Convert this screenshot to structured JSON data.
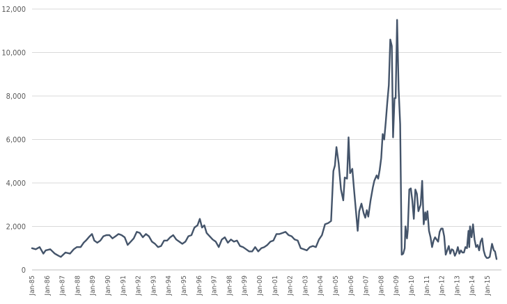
{
  "colors": {
    "line": "#44546a",
    "grid": "#d9d9d9",
    "text": "#595959"
  },
  "chart_data": {
    "type": "line",
    "title": "",
    "xlabel": "",
    "ylabel": "",
    "ylim": [
      0,
      12000
    ],
    "grid": "horizontal",
    "y_ticks": [
      0,
      2000,
      4000,
      6000,
      8000,
      10000,
      12000
    ],
    "y_tick_labels": [
      "0",
      "2,000",
      "4,000",
      "6,000",
      "8,000",
      "10,000",
      "12,000"
    ],
    "x_range": [
      1985.0,
      2015.92
    ],
    "x_ticks": [
      1985,
      1986,
      1987,
      1988,
      1989,
      1990,
      1991,
      1992,
      1993,
      1994,
      1995,
      1996,
      1997,
      1998,
      1999,
      2000,
      2001,
      2002,
      2003,
      2004,
      2005,
      2006,
      2007,
      2008,
      2009,
      2010,
      2011,
      2012,
      2013,
      2014,
      2015
    ],
    "x_tick_labels": [
      "Jan-85",
      "Jan-86",
      "Jan-87",
      "Jan-88",
      "Jan-89",
      "Jan-90",
      "Jan-91",
      "Jan-92",
      "Jan-93",
      "Jan-94",
      "Jan-95",
      "Jan-96",
      "Jan-97",
      "Jan-98",
      "Jan-99",
      "Jan-00",
      "Jan-01",
      "Jan-02",
      "Jan-03",
      "Jan-04",
      "Jan-05",
      "Jan-06",
      "Jan-07",
      "Jan-08",
      "Jan-09",
      "Jan-10",
      "Jan-11",
      "Jan-12",
      "Jan-13",
      "Jan-14",
      "Jan-15"
    ],
    "series": [
      {
        "points": [
          [
            1985.0,
            1000
          ],
          [
            1985.25,
            950
          ],
          [
            1985.5,
            1050
          ],
          [
            1985.75,
            750
          ],
          [
            1985.9,
            900
          ],
          [
            1986.2,
            950
          ],
          [
            1986.5,
            750
          ],
          [
            1986.75,
            650
          ],
          [
            1986.9,
            600
          ],
          [
            1987.2,
            800
          ],
          [
            1987.5,
            750
          ],
          [
            1987.75,
            950
          ],
          [
            1987.95,
            1050
          ],
          [
            1988.2,
            1050
          ],
          [
            1988.4,
            1250
          ],
          [
            1988.55,
            1350
          ],
          [
            1988.8,
            1550
          ],
          [
            1988.95,
            1650
          ],
          [
            1989.1,
            1350
          ],
          [
            1989.3,
            1250
          ],
          [
            1989.5,
            1350
          ],
          [
            1989.7,
            1550
          ],
          [
            1989.9,
            1600
          ],
          [
            1990.1,
            1600
          ],
          [
            1990.3,
            1450
          ],
          [
            1990.5,
            1550
          ],
          [
            1990.7,
            1650
          ],
          [
            1990.9,
            1600
          ],
          [
            1991.1,
            1500
          ],
          [
            1991.3,
            1150
          ],
          [
            1991.5,
            1300
          ],
          [
            1991.7,
            1450
          ],
          [
            1991.9,
            1750
          ],
          [
            1992.1,
            1700
          ],
          [
            1992.3,
            1500
          ],
          [
            1992.5,
            1650
          ],
          [
            1992.7,
            1550
          ],
          [
            1992.9,
            1300
          ],
          [
            1993.1,
            1200
          ],
          [
            1993.3,
            1050
          ],
          [
            1993.5,
            1100
          ],
          [
            1993.7,
            1350
          ],
          [
            1993.9,
            1350
          ],
          [
            1994.1,
            1500
          ],
          [
            1994.3,
            1600
          ],
          [
            1994.5,
            1400
          ],
          [
            1994.7,
            1300
          ],
          [
            1994.9,
            1200
          ],
          [
            1995.1,
            1300
          ],
          [
            1995.3,
            1550
          ],
          [
            1995.5,
            1600
          ],
          [
            1995.7,
            1950
          ],
          [
            1995.9,
            2050
          ],
          [
            1996.05,
            2350
          ],
          [
            1996.2,
            1950
          ],
          [
            1996.35,
            2050
          ],
          [
            1996.5,
            1700
          ],
          [
            1996.7,
            1550
          ],
          [
            1996.9,
            1400
          ],
          [
            1997.1,
            1300
          ],
          [
            1997.3,
            1050
          ],
          [
            1997.5,
            1400
          ],
          [
            1997.7,
            1500
          ],
          [
            1997.9,
            1250
          ],
          [
            1998.1,
            1400
          ],
          [
            1998.3,
            1300
          ],
          [
            1998.5,
            1350
          ],
          [
            1998.7,
            1100
          ],
          [
            1998.9,
            1050
          ],
          [
            1999.1,
            950
          ],
          [
            1999.3,
            850
          ],
          [
            1999.5,
            850
          ],
          [
            1999.7,
            1050
          ],
          [
            1999.9,
            850
          ],
          [
            2000.1,
            1000
          ],
          [
            2000.3,
            1050
          ],
          [
            2000.5,
            1150
          ],
          [
            2000.7,
            1300
          ],
          [
            2000.9,
            1350
          ],
          [
            2001.1,
            1650
          ],
          [
            2001.3,
            1650
          ],
          [
            2001.5,
            1700
          ],
          [
            2001.7,
            1750
          ],
          [
            2001.9,
            1600
          ],
          [
            2002.1,
            1550
          ],
          [
            2002.3,
            1400
          ],
          [
            2002.5,
            1350
          ],
          [
            2002.7,
            1000
          ],
          [
            2002.9,
            950
          ],
          [
            2003.1,
            900
          ],
          [
            2003.3,
            1050
          ],
          [
            2003.5,
            1100
          ],
          [
            2003.7,
            1050
          ],
          [
            2003.9,
            1400
          ],
          [
            2004.1,
            1600
          ],
          [
            2004.3,
            2100
          ],
          [
            2004.5,
            2150
          ],
          [
            2004.7,
            2250
          ],
          [
            2004.85,
            4550
          ],
          [
            2004.95,
            4800
          ],
          [
            2005.05,
            5650
          ],
          [
            2005.2,
            4900
          ],
          [
            2005.35,
            3700
          ],
          [
            2005.5,
            3200
          ],
          [
            2005.6,
            4250
          ],
          [
            2005.75,
            4200
          ],
          [
            2005.85,
            6100
          ],
          [
            2005.95,
            4450
          ],
          [
            2006.1,
            4650
          ],
          [
            2006.2,
            3800
          ],
          [
            2006.3,
            3000
          ],
          [
            2006.45,
            1800
          ],
          [
            2006.55,
            2700
          ],
          [
            2006.7,
            3050
          ],
          [
            2006.85,
            2600
          ],
          [
            2006.95,
            2400
          ],
          [
            2007.05,
            2750
          ],
          [
            2007.15,
            2450
          ],
          [
            2007.3,
            3200
          ],
          [
            2007.45,
            3800
          ],
          [
            2007.55,
            4100
          ],
          [
            2007.7,
            4350
          ],
          [
            2007.8,
            4200
          ],
          [
            2007.9,
            4600
          ],
          [
            2008.0,
            5150
          ],
          [
            2008.1,
            6250
          ],
          [
            2008.2,
            6000
          ],
          [
            2008.3,
            6800
          ],
          [
            2008.4,
            7700
          ],
          [
            2008.5,
            8500
          ],
          [
            2008.6,
            10600
          ],
          [
            2008.7,
            10300
          ],
          [
            2008.78,
            6100
          ],
          [
            2008.88,
            7900
          ],
          [
            2008.95,
            7900
          ],
          [
            2009.05,
            11500
          ],
          [
            2009.15,
            8300
          ],
          [
            2009.25,
            6700
          ],
          [
            2009.35,
            700
          ],
          [
            2009.45,
            750
          ],
          [
            2009.55,
            1000
          ],
          [
            2009.6,
            2000
          ],
          [
            2009.7,
            1450
          ],
          [
            2009.75,
            1800
          ],
          [
            2009.85,
            3700
          ],
          [
            2009.95,
            3750
          ],
          [
            2010.05,
            3200
          ],
          [
            2010.15,
            2350
          ],
          [
            2010.25,
            3700
          ],
          [
            2010.35,
            3500
          ],
          [
            2010.45,
            2700
          ],
          [
            2010.6,
            3000
          ],
          [
            2010.7,
            4100
          ],
          [
            2010.8,
            2100
          ],
          [
            2010.9,
            2650
          ],
          [
            2010.95,
            2300
          ],
          [
            2011.05,
            2700
          ],
          [
            2011.15,
            1800
          ],
          [
            2011.25,
            1500
          ],
          [
            2011.35,
            1050
          ],
          [
            2011.45,
            1350
          ],
          [
            2011.55,
            1500
          ],
          [
            2011.65,
            1400
          ],
          [
            2011.75,
            1300
          ],
          [
            2011.85,
            1750
          ],
          [
            2011.95,
            1900
          ],
          [
            2012.05,
            1900
          ],
          [
            2012.15,
            1550
          ],
          [
            2012.25,
            700
          ],
          [
            2012.35,
            900
          ],
          [
            2012.45,
            1100
          ],
          [
            2012.55,
            750
          ],
          [
            2012.65,
            950
          ],
          [
            2012.75,
            900
          ],
          [
            2012.85,
            650
          ],
          [
            2012.95,
            800
          ],
          [
            2013.05,
            1050
          ],
          [
            2013.15,
            750
          ],
          [
            2013.25,
            900
          ],
          [
            2013.35,
            800
          ],
          [
            2013.45,
            800
          ],
          [
            2013.55,
            1050
          ],
          [
            2013.65,
            1000
          ],
          [
            2013.75,
            1800
          ],
          [
            2013.8,
            1050
          ],
          [
            2013.85,
            2000
          ],
          [
            2013.95,
            1500
          ],
          [
            2014.05,
            2100
          ],
          [
            2014.15,
            1400
          ],
          [
            2014.25,
            1050
          ],
          [
            2014.35,
            1150
          ],
          [
            2014.45,
            900
          ],
          [
            2014.55,
            1300
          ],
          [
            2014.65,
            1450
          ],
          [
            2014.75,
            900
          ],
          [
            2014.85,
            650
          ],
          [
            2014.95,
            550
          ],
          [
            2015.05,
            550
          ],
          [
            2015.15,
            600
          ],
          [
            2015.3,
            1200
          ],
          [
            2015.42,
            900
          ],
          [
            2015.5,
            850
          ],
          [
            2015.6,
            500
          ]
        ]
      }
    ]
  }
}
